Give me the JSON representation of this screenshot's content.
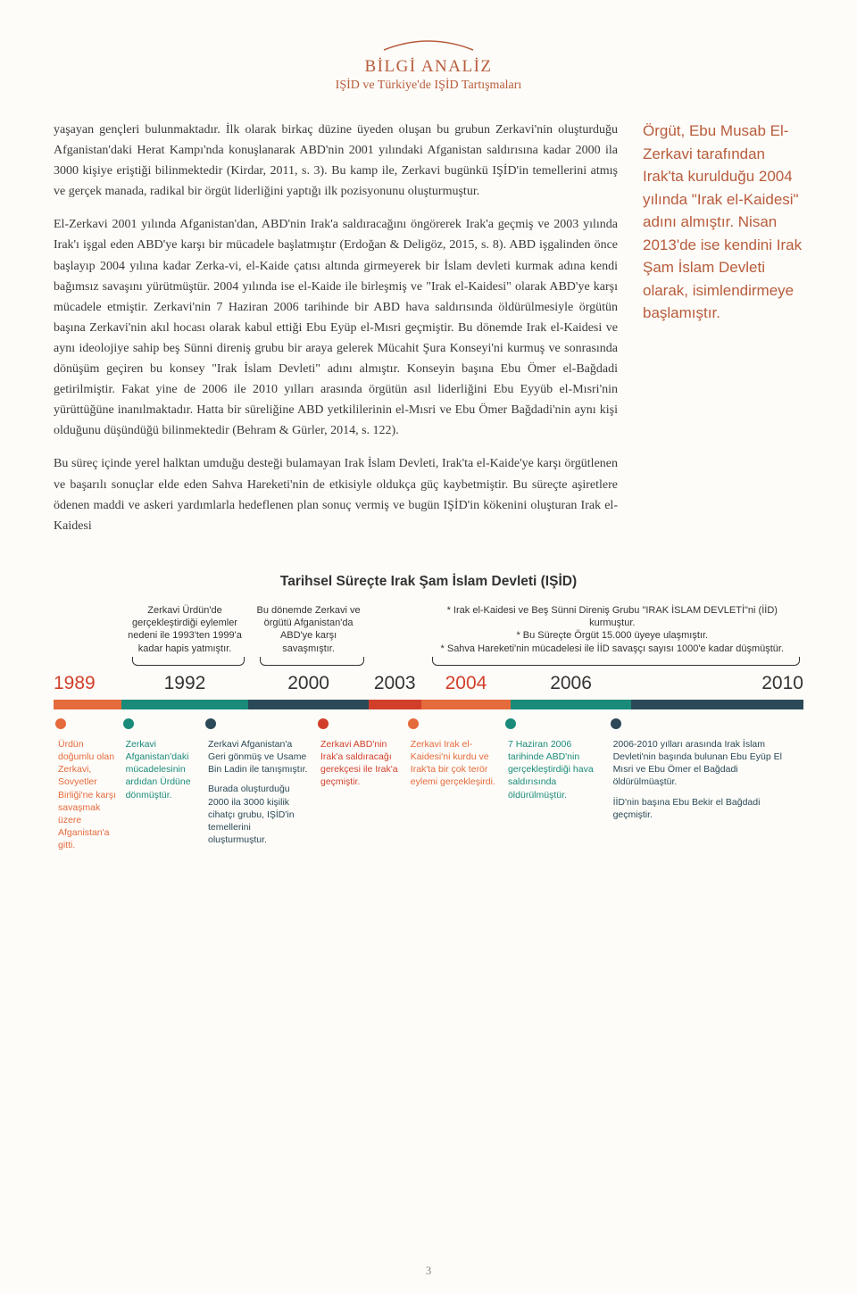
{
  "header": {
    "title": "BİLGİ ANALİZ",
    "subtitle": "IŞİD ve Türkiye'de IŞİD Tartışmaları",
    "arc_color": "#b85c3c"
  },
  "colors": {
    "accent": "#b85c3c",
    "body_text": "#3a3a3a",
    "background": "#fdfcf8"
  },
  "body": {
    "p1": "yaşayan gençleri bulunmaktadır. İlk olarak birkaç düzine üyeden oluşan bu grubun Zerkavi'nin oluşturduğu Afganistan'daki Herat Kampı'nda konuşlanarak ABD'nin 2001 yılındaki Afganistan saldırısına kadar 2000 ila 3000 kişiye eriştiği bilinmektedir (Kirdar, 2011, s. 3). Bu kamp ile, Zerkavi bugünkü IŞİD'in temellerini atmış ve gerçek manada, radikal bir örgüt liderliğini yaptığı ilk pozisyonunu oluşturmuştur.",
    "p2": "El-Zerkavi 2001 yılında Afganistan'dan, ABD'nin Irak'a saldıracağını öngörerek Irak'a geçmiş ve 2003 yılında Irak'ı işgal eden ABD'ye karşı bir mücadele başlatmıştır (Erdoğan & Deligöz, 2015, s. 8). ABD işgalinden önce başlayıp 2004 yılına kadar Zerka-vi, el-Kaide çatısı altında girmeyerek bir İslam devleti kurmak adına kendi bağımsız savaşını yürütmüştür. 2004 yılında ise el-Kaide ile birleşmiş ve \"Irak el-Kaidesi\" olarak ABD'ye karşı mücadele etmiştir. Zerkavi'nin 7 Haziran 2006 tarihinde bir ABD hava saldırısında öldürülmesiyle örgütün başına Zerkavi'nin akıl hocası olarak kabul ettiği Ebu Eyüp el-Mısri geçmiştir. Bu dönemde Irak el-Kaidesi ve aynı ideolojiye sahip beş Sünni direniş grubu bir araya gelerek Mücahit Şura Konseyi'ni kurmuş ve sonrasında dönüşüm geçiren bu konsey \"Irak İslam Devleti\" adını almıştır. Konseyin başına Ebu Ömer el-Bağdadi getirilmiştir. Fakat yine de 2006 ile 2010 yılları arasında örgütün asıl liderliğini Ebu Eyyüb el-Mısri'nin yürüttüğüne inanılmaktadır. Hatta bir süreliğine ABD yetkililerinin el-Mısri ve Ebu Ömer Bağdadi'nin aynı kişi olduğunu düşündüğü bilinmektedir (Behram & Gürler, 2014, s. 122).",
    "p3": "Bu süreç içinde yerel halktan umduğu desteği bulamayan Irak İslam Devleti, Irak'ta el-Kaide'ye karşı örgütlenen ve başarılı sonuçlar elde eden Sahva Hareketi'nin de etkisiyle oldukça güç kaybetmiştir. Bu süreçte aşiretlere ödenen maddi ve askeri yardımlarla hedeflenen plan sonuç vermiş ve bugün IŞİD'in kökenini oluşturan Irak el-Kaidesi"
  },
  "sidebar": {
    "text": "Örgüt, Ebu Musab El-Zerkavi tarafından Irak'ta kurulduğu 2004 yılında \"Irak el-Kaidesi\" adını almıştır. Nisan 2013'de ise kendini Irak Şam İslam Devleti olarak, isimlendirmeye başlamıştır."
  },
  "timeline": {
    "title": "Tarihsel Süreçte Irak Şam İslam Devleti (IŞİD)",
    "upper_notes": [
      {
        "width_pct": 9,
        "text": ""
      },
      {
        "width_pct": 17,
        "text": "Zerkavi Ürdün'de gerçekleştirdiği eylemler nedeni ile 1993'ten 1999'a kadar hapis yatmıştır."
      },
      {
        "width_pct": 16,
        "text": "Bu dönemde Zerkavi ve örgütü Afganistan'da ABD'ye karşı savaşmıştır."
      },
      {
        "width_pct": 7,
        "text": ""
      },
      {
        "width_pct": 51,
        "text": "* Irak el-Kaidesi ve Beş Sünni Direniş Grubu \"IRAK İSLAM DEVLETİ\"ni (İİD) kurmuştur.\n* Bu Süreçte Örgüt 15.000 üyeye ulaşmıştır.\n* Sahva Hareketi'nin mücadelesi ile İİD savaşçı sayısı 1000'e kadar düşmüştür."
      }
    ],
    "braces": [
      {
        "left_pct": 9,
        "width_pct": 17
      },
      {
        "left_pct": 26,
        "width_pct": 16
      },
      {
        "left_pct": 49,
        "width_pct": 51
      }
    ],
    "years": [
      {
        "label": "1989",
        "width_pct": 9,
        "color": "#d13f2a",
        "first": true
      },
      {
        "label": "1992",
        "width_pct": 17,
        "color": "#333"
      },
      {
        "label": "2000",
        "width_pct": 16,
        "color": "#333"
      },
      {
        "label": "2003",
        "width_pct": 7,
        "color": "#333"
      },
      {
        "label": "2004",
        "width_pct": 12,
        "color": "#d13f2a"
      },
      {
        "label": "2006",
        "width_pct": 16,
        "color": "#333"
      },
      {
        "label": "2010",
        "width_pct": 23,
        "color": "#333",
        "align": "right"
      }
    ],
    "bar_segments": [
      {
        "width_pct": 9,
        "color": "#e56a3c"
      },
      {
        "width_pct": 17,
        "color": "#1a8b7a"
      },
      {
        "width_pct": 16,
        "color": "#2b4957"
      },
      {
        "width_pct": 7,
        "color": "#d13f2a"
      },
      {
        "width_pct": 12,
        "color": "#e56a3c"
      },
      {
        "width_pct": 16,
        "color": "#1a8b7a"
      },
      {
        "width_pct": 23,
        "color": "#2b4957"
      }
    ],
    "dots": [
      {
        "width_pct": 9,
        "color": "#e56a3c"
      },
      {
        "width_pct": 11,
        "color": "#1a8b7a"
      },
      {
        "width_pct": 15,
        "color": "#2b4957"
      },
      {
        "width_pct": 12,
        "color": "#d13f2a"
      },
      {
        "width_pct": 13,
        "color": "#e56a3c"
      },
      {
        "width_pct": 14,
        "color": "#1a8b7a"
      },
      {
        "width_pct": 26,
        "color": "#2b4957"
      }
    ],
    "lower_notes": [
      {
        "width_pct": 9,
        "color": "#e56a3c",
        "paras": [
          "Ürdün doğumlu olan Zerkavi, Sovyetler Birliği'ne karşı savaşmak üzere Afganistan'a gitti."
        ]
      },
      {
        "width_pct": 11,
        "color": "#1a8b7a",
        "paras": [
          "Zerkavi Afganistan'daki mücadelesinin ardıdan Ürdüne dönmüştür."
        ]
      },
      {
        "width_pct": 15,
        "color": "#2b4957",
        "paras": [
          "Zerkavi Afganistan'a Geri gönmüş ve Usame Bin Ladin ile tanışmıştır.",
          "Burada oluşturduğu 2000 ila 3000 kişilik cihatçı grubu, IŞİD'in temellerini oluşturmuştur."
        ]
      },
      {
        "width_pct": 12,
        "color": "#d13f2a",
        "paras": [
          "Zerkavi ABD'nin Irak'a saldıracağı gerekçesi ile Irak'a geçmiştir."
        ]
      },
      {
        "width_pct": 13,
        "color": "#e56a3c",
        "paras": [
          "Zerkavi Irak el-Kaidesi'ni kurdu ve Irak'ta bir çok terör eylemi gerçekleşirdi."
        ]
      },
      {
        "width_pct": 14,
        "color": "#1a8b7a",
        "paras": [
          "7 Haziran 2006 tarihinde ABD'nin gerçekleştirdiği hava saldırısında öldürülmüştür."
        ]
      },
      {
        "width_pct": 26,
        "color": "#2b4957",
        "paras": [
          "2006-2010 yılları arasında Irak İslam Devleti'nin başında bulunan Ebu Eyüp El Mısri ve Ebu Ömer el Bağdadi öldürülmüaştür.",
          "İİD'nin başına Ebu Bekir el Bağdadi geçmiştir."
        ]
      }
    ]
  },
  "page_number": "3"
}
